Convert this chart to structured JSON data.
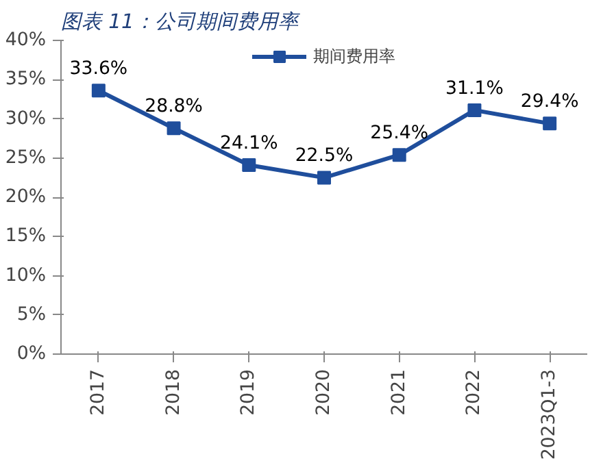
{
  "chart_data": {
    "type": "line",
    "title": "图表 11：公司期间费用率",
    "categories": [
      "2017",
      "2018",
      "2019",
      "2020",
      "2021",
      "2022",
      "2023Q1-3"
    ],
    "series": [
      {
        "name": "期间费用率",
        "color": "#1f4e9c",
        "values": [
          33.6,
          28.8,
          24.1,
          22.5,
          25.4,
          31.1,
          29.4
        ]
      }
    ],
    "value_labels": [
      "33.6%",
      "28.8%",
      "24.1%",
      "22.5%",
      "25.4%",
      "31.1%",
      "29.4%"
    ],
    "ylim": [
      0,
      40
    ],
    "yticks": [
      {
        "value": 0,
        "label": "0%"
      },
      {
        "value": 5,
        "label": "5%"
      },
      {
        "value": 10,
        "label": "10%"
      },
      {
        "value": 15,
        "label": "15%"
      },
      {
        "value": 20,
        "label": "20%"
      },
      {
        "value": 25,
        "label": "25%"
      },
      {
        "value": 30,
        "label": "30%"
      },
      {
        "value": 35,
        "label": "35%"
      },
      {
        "value": 40,
        "label": "40%"
      }
    ],
    "grid": false,
    "legend": "top",
    "marker": "square",
    "line_style": "solid"
  }
}
